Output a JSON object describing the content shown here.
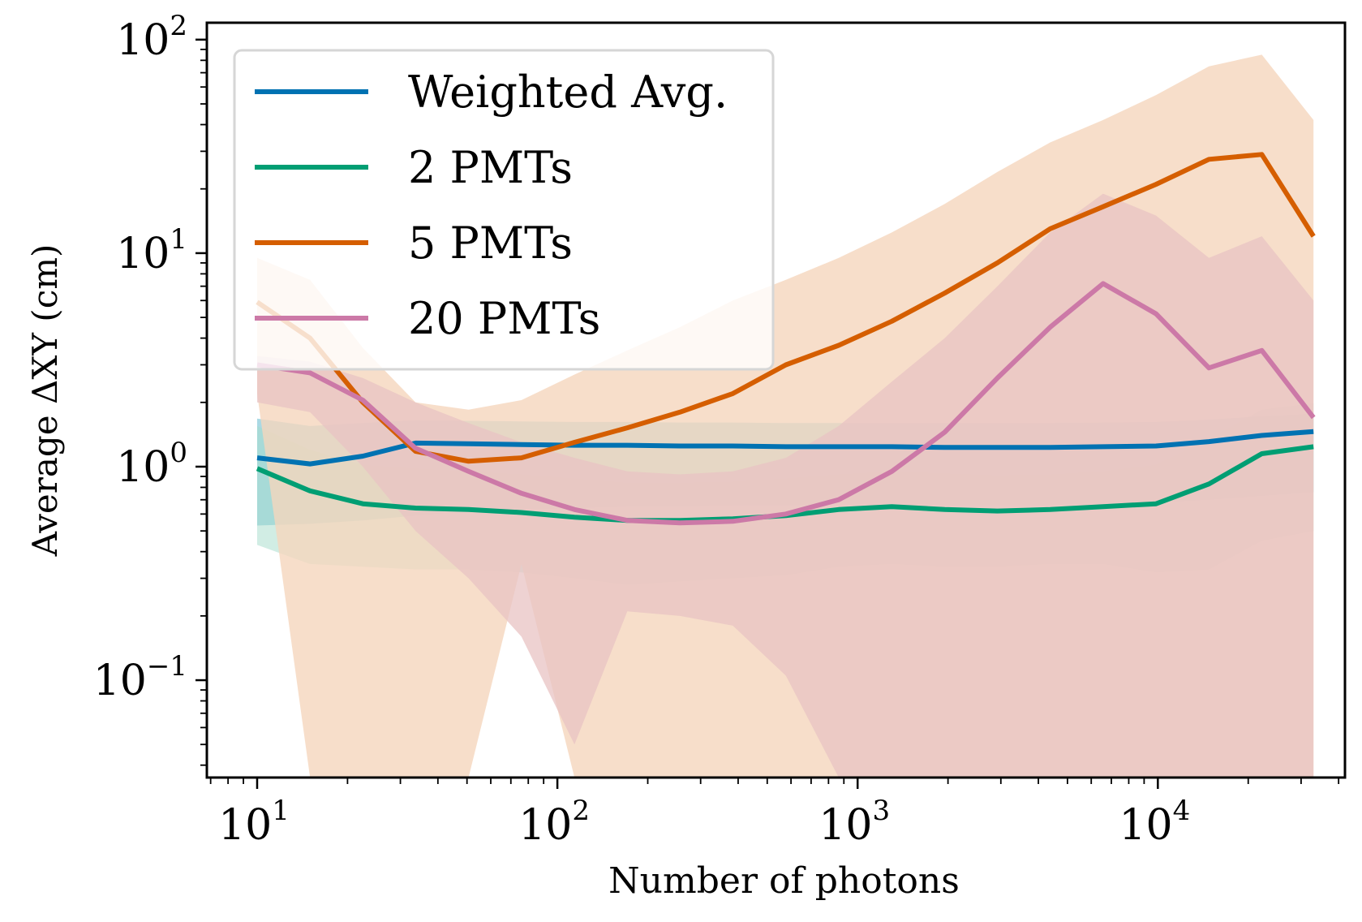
{
  "chart_data": {
    "type": "line",
    "xlabel": "Number of photons",
    "ylabel": "Average ΔXY (cm)",
    "xscale": "log",
    "yscale": "log",
    "xlim": [
      6.8,
      42000
    ],
    "ylim": [
      0.035,
      120
    ],
    "grid": false,
    "legend_position": "top-left",
    "x_ticks": [
      {
        "value": 10,
        "base": "10",
        "exp": "1"
      },
      {
        "value": 100,
        "base": "10",
        "exp": "2"
      },
      {
        "value": 1000,
        "base": "10",
        "exp": "3"
      },
      {
        "value": 10000,
        "base": "10",
        "exp": "4"
      }
    ],
    "y_ticks": [
      {
        "value": 0.1,
        "base": "10",
        "exp": "−1"
      },
      {
        "value": 1,
        "base": "10",
        "exp": "0"
      },
      {
        "value": 10,
        "base": "10",
        "exp": "1"
      },
      {
        "value": 100,
        "base": "10",
        "exp": "2"
      }
    ],
    "x": [
      10,
      15,
      22.5,
      33.7,
      50.6,
      75.9,
      114,
      171,
      256,
      384,
      577,
      865,
      1300,
      1950,
      2920,
      4380,
      6570,
      9860,
      14800,
      22200,
      33000
    ],
    "series": [
      {
        "name": "Weighted Avg.",
        "color": "#0072b2",
        "band_color": "#56b4c9",
        "values": [
          1.1,
          1.03,
          1.12,
          1.29,
          1.28,
          1.27,
          1.26,
          1.26,
          1.25,
          1.25,
          1.24,
          1.24,
          1.24,
          1.23,
          1.23,
          1.23,
          1.24,
          1.25,
          1.31,
          1.4,
          1.46
        ],
        "lower": [
          0.53,
          0.54,
          0.56,
          0.59,
          0.62,
          0.63,
          0.64,
          0.65,
          0.65,
          0.66,
          0.66,
          0.66,
          0.66,
          0.66,
          0.66,
          0.66,
          0.67,
          0.68,
          0.7,
          0.73,
          0.76
        ],
        "upper": [
          1.68,
          1.55,
          1.6,
          1.65,
          1.64,
          1.63,
          1.62,
          1.62,
          1.61,
          1.61,
          1.6,
          1.6,
          1.6,
          1.6,
          1.6,
          1.6,
          1.61,
          1.62,
          1.66,
          1.72,
          1.77
        ]
      },
      {
        "name": "2 PMTs",
        "color": "#009e73",
        "band_color": "#a3dcc9",
        "values": [
          0.98,
          0.77,
          0.67,
          0.64,
          0.63,
          0.61,
          0.58,
          0.56,
          0.56,
          0.57,
          0.59,
          0.63,
          0.65,
          0.63,
          0.62,
          0.63,
          0.65,
          0.67,
          0.83,
          1.15,
          1.24
        ],
        "lower": [
          0.43,
          0.35,
          0.34,
          0.33,
          0.33,
          0.32,
          0.3,
          0.28,
          0.29,
          0.3,
          0.31,
          0.34,
          0.35,
          0.34,
          0.34,
          0.35,
          0.35,
          0.32,
          0.33,
          0.45,
          0.5
        ],
        "upper": [
          1.55,
          1.2,
          1.02,
          0.98,
          0.95,
          0.92,
          0.88,
          0.84,
          0.84,
          0.85,
          0.88,
          0.92,
          0.95,
          0.93,
          0.91,
          0.92,
          0.95,
          1.02,
          1.35,
          1.85,
          1.98
        ]
      },
      {
        "name": "5 PMTs",
        "color": "#d55e00",
        "band_color": "#f5d6bd",
        "values": [
          5.9,
          4.0,
          2.0,
          1.18,
          1.06,
          1.1,
          1.3,
          1.52,
          1.8,
          2.2,
          3.0,
          3.7,
          4.8,
          6.5,
          9.0,
          13.0,
          16.5,
          21.0,
          27.5,
          29.0,
          12.0
        ],
        "lower": [
          2.2,
          0.035,
          0.035,
          0.035,
          0.035,
          0.35,
          0.035,
          0.035,
          0.035,
          0.035,
          0.035,
          0.035,
          0.035,
          0.035,
          0.035,
          0.035,
          0.035,
          0.035,
          0.035,
          0.035,
          0.035
        ],
        "upper": [
          9.5,
          7.5,
          3.6,
          2.0,
          1.85,
          2.05,
          2.7,
          3.5,
          4.5,
          6.0,
          7.5,
          9.5,
          12.5,
          17.0,
          24.0,
          33.0,
          42.0,
          55.0,
          75.0,
          85.0,
          42.0
        ]
      },
      {
        "name": "20 PMTs",
        "color": "#cc79a7",
        "band_color": "#e8c3c3",
        "values": [
          3.0,
          2.75,
          2.05,
          1.22,
          0.95,
          0.75,
          0.63,
          0.56,
          0.545,
          0.555,
          0.6,
          0.7,
          0.95,
          1.45,
          2.6,
          4.5,
          7.2,
          5.2,
          2.9,
          3.5,
          1.7
        ],
        "lower": [
          2.0,
          1.8,
          1.0,
          0.5,
          0.3,
          0.16,
          0.05,
          0.21,
          0.2,
          0.18,
          0.105,
          0.035,
          0.035,
          0.035,
          0.035,
          0.035,
          0.035,
          0.035,
          0.035,
          0.035,
          0.035
        ],
        "upper": [
          3.3,
          3.1,
          2.6,
          2.0,
          1.6,
          1.3,
          1.1,
          0.95,
          0.92,
          0.95,
          1.1,
          1.55,
          2.5,
          4.0,
          7.0,
          12.5,
          19.0,
          15.0,
          9.5,
          12.0,
          6.0
        ]
      }
    ]
  }
}
